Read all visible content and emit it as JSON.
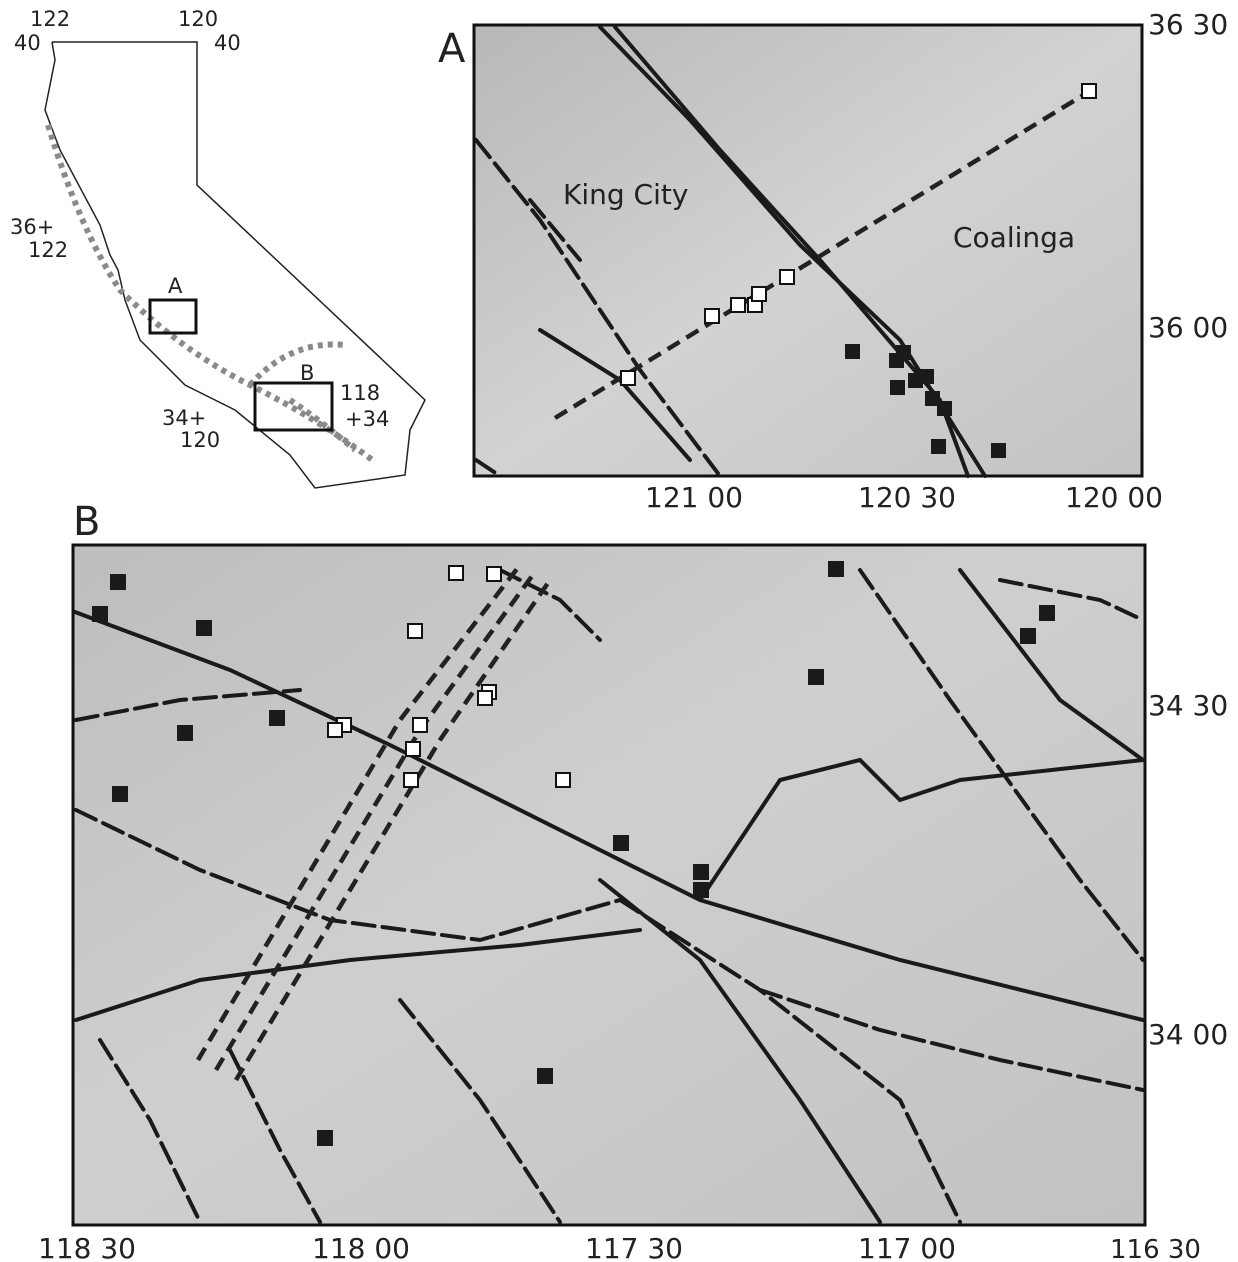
{
  "inset": {
    "labels": [
      "122",
      "120",
      "40",
      "40",
      "36+",
      "122",
      "A",
      "B",
      "118",
      "+34",
      "34+",
      "120"
    ]
  },
  "panel_a": {
    "label": "A",
    "places": [
      "King City",
      "Coalinga"
    ],
    "lat_labels": [
      "36 30",
      "36 00"
    ],
    "lon_labels": [
      "121 00",
      "120 30",
      "120 00"
    ]
  },
  "panel_b": {
    "label": "B",
    "lat_labels": [
      "34 30",
      "34 00"
    ],
    "lon_labels": [
      "118 30",
      "118 00",
      "117 30",
      "117 00",
      "116 30"
    ]
  }
}
